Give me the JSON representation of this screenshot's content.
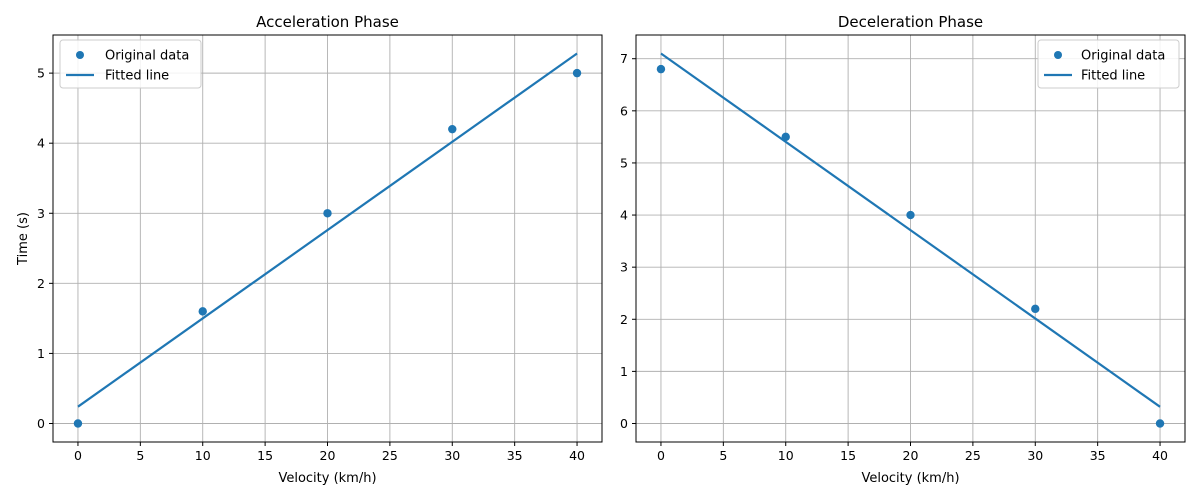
{
  "colors": {
    "series": "#1f77b4",
    "grid": "#b0b0b0",
    "axis": "#000000"
  },
  "chart_data": [
    {
      "type": "scatter",
      "title": "Acceleration Phase",
      "xlabel": "Velocity (km/h)",
      "ylabel": "Time (s)",
      "xlim": [
        -2,
        42
      ],
      "ylim": [
        -0.264,
        5.544
      ],
      "xticks": [
        0,
        5,
        10,
        15,
        20,
        25,
        30,
        35,
        40
      ],
      "yticks": [
        0,
        1,
        2,
        3,
        4,
        5
      ],
      "grid": true,
      "legend_position": "top-left",
      "series": [
        {
          "name": "Original data",
          "kind": "scatter",
          "x": [
            0,
            10,
            20,
            30,
            40
          ],
          "y": [
            0,
            1.6,
            3.0,
            4.2,
            5.0
          ]
        },
        {
          "name": "Fitted line",
          "kind": "line",
          "x": [
            0,
            40
          ],
          "y": [
            0.24,
            5.28
          ]
        }
      ]
    },
    {
      "type": "scatter",
      "title": "Deceleration Phase",
      "xlabel": "Velocity (km/h)",
      "ylabel": "",
      "xlim": [
        -2,
        42
      ],
      "ylim": [
        -0.355,
        7.455
      ],
      "xticks": [
        0,
        5,
        10,
        15,
        20,
        25,
        30,
        35,
        40
      ],
      "yticks": [
        0,
        1,
        2,
        3,
        4,
        5,
        6,
        7
      ],
      "grid": true,
      "legend_position": "top-right",
      "series": [
        {
          "name": "Original data",
          "kind": "scatter",
          "x": [
            0,
            10,
            20,
            30,
            40
          ],
          "y": [
            6.8,
            5.5,
            4.0,
            2.2,
            0.0
          ]
        },
        {
          "name": "Fitted line",
          "kind": "line",
          "x": [
            0,
            40
          ],
          "y": [
            7.1,
            0.32
          ]
        }
      ]
    }
  ]
}
